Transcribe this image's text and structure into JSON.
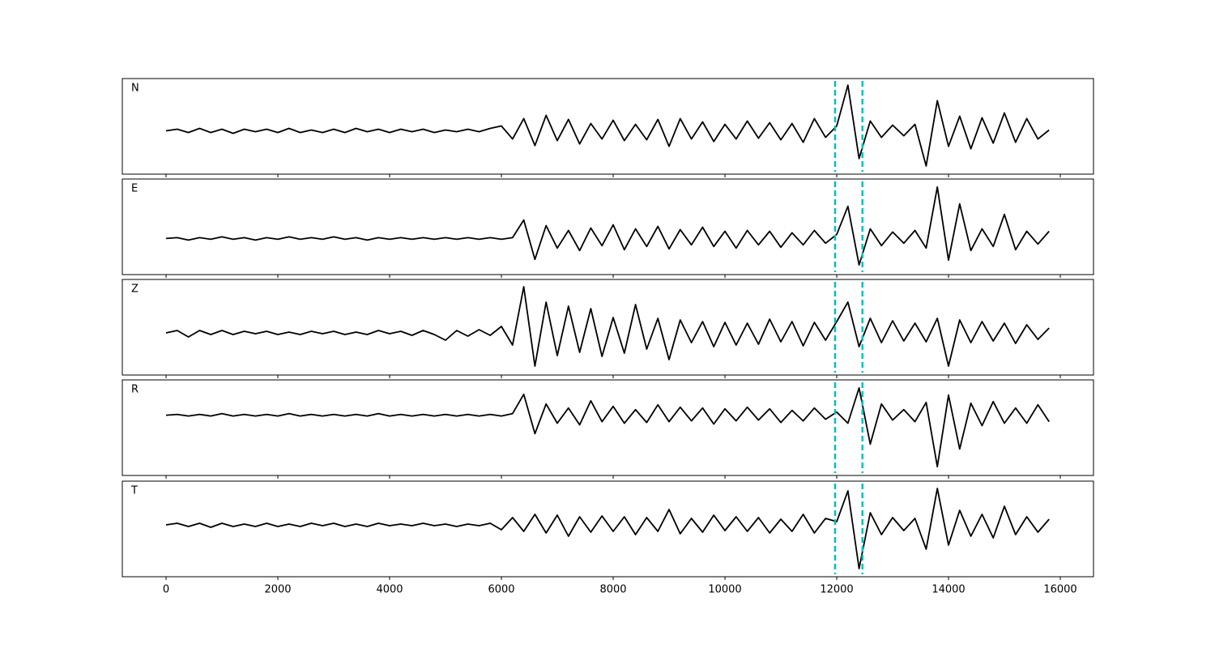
{
  "chart_data": {
    "type": "line",
    "x": [
      0,
      200,
      400,
      600,
      800,
      1000,
      1200,
      1400,
      1600,
      1800,
      2000,
      2200,
      2400,
      2600,
      2800,
      3000,
      3200,
      3400,
      3600,
      3800,
      4000,
      4200,
      4400,
      4600,
      4800,
      5000,
      5200,
      5400,
      5600,
      5800,
      6000,
      6200,
      6400,
      6600,
      6800,
      7000,
      7200,
      7400,
      7600,
      7800,
      8000,
      8200,
      8400,
      8600,
      8800,
      9000,
      9200,
      9400,
      9600,
      9800,
      10000,
      10200,
      10400,
      10600,
      10800,
      11000,
      11200,
      11400,
      11600,
      11800,
      12000,
      12200,
      12400,
      12600,
      12800,
      13000,
      13200,
      13400,
      13600,
      13800,
      14000,
      14200,
      14400,
      14600,
      14800,
      15000,
      15200,
      15400,
      15600,
      15800
    ],
    "xlim": [
      -783,
      16594
    ],
    "xticks": [
      0,
      2000,
      4000,
      6000,
      8000,
      10000,
      12000,
      14000,
      16000
    ],
    "series": [
      {
        "name": "N",
        "color": "#000000",
        "ylim": [
          -5.3,
          6.4
        ],
        "values": [
          0,
          0.2,
          -0.2,
          0.3,
          -0.2,
          0.2,
          -0.3,
          0.2,
          -0.1,
          0.2,
          -0.2,
          0.3,
          -0.2,
          0.1,
          -0.2,
          0.2,
          -0.2,
          0.3,
          -0.1,
          0.2,
          -0.2,
          0.2,
          -0.1,
          0.2,
          -0.2,
          0.1,
          -0.1,
          0.2,
          -0.1,
          0.3,
          0.6,
          -1.0,
          1.5,
          -1.8,
          1.9,
          -1.2,
          1.4,
          -1.6,
          0.9,
          -1.0,
          1.3,
          -1.2,
          0.8,
          -1.1,
          1.4,
          -1.9,
          1.5,
          -1.0,
          1.1,
          -1.3,
          0.8,
          -1.0,
          1.2,
          -0.9,
          1.0,
          -1.1,
          0.9,
          -1.4,
          1.5,
          -0.8,
          0.6,
          5.6,
          -3.4,
          1.2,
          -0.8,
          0.7,
          -0.6,
          0.8,
          -4.3,
          3.7,
          -1.9,
          1.8,
          -2.2,
          1.6,
          -1.5,
          2.2,
          -1.4,
          1.5,
          -1.0,
          0.1
        ]
      },
      {
        "name": "E",
        "color": "#000000",
        "ylim": [
          -4.5,
          7.4
        ],
        "values": [
          0,
          0.1,
          -0.2,
          0.1,
          -0.1,
          0.2,
          -0.1,
          0.1,
          -0.2,
          0.1,
          -0.1,
          0.2,
          -0.1,
          0.1,
          -0.1,
          0.2,
          -0.1,
          0.1,
          -0.2,
          0.1,
          -0.1,
          0.1,
          -0.1,
          0.1,
          -0.1,
          0.1,
          -0.1,
          0.1,
          -0.1,
          0.1,
          -0.1,
          0.1,
          2.3,
          -2.6,
          1.6,
          -1.2,
          1.0,
          -1.5,
          1.3,
          -0.9,
          1.7,
          -1.4,
          1.2,
          -1.0,
          1.5,
          -1.3,
          1.1,
          -0.8,
          1.4,
          -1.0,
          0.9,
          -1.2,
          1.0,
          -0.8,
          0.9,
          -1.1,
          0.7,
          -0.8,
          1.0,
          -0.6,
          0.5,
          4.0,
          -3.3,
          1.2,
          -0.9,
          0.8,
          -0.6,
          1.0,
          -1.2,
          6.4,
          -2.7,
          4.3,
          -1.5,
          1.2,
          -1.0,
          3.0,
          -1.4,
          0.9,
          -0.7,
          0.9
        ]
      },
      {
        "name": "Z",
        "color": "#000000",
        "ylim": [
          -5.2,
          6.6
        ],
        "values": [
          0,
          0.3,
          -0.5,
          0.3,
          -0.2,
          0.3,
          -0.2,
          0.2,
          -0.1,
          0.2,
          -0.2,
          0.1,
          -0.2,
          0.2,
          -0.1,
          0.2,
          -0.2,
          0.1,
          -0.2,
          0.3,
          -0.1,
          0.2,
          -0.3,
          0.3,
          -0.2,
          -0.9,
          0.3,
          -0.4,
          0.4,
          -0.3,
          0.8,
          -1.5,
          5.7,
          -4.1,
          3.8,
          -2.8,
          3.3,
          -2.4,
          3.0,
          -2.9,
          1.9,
          -2.5,
          3.5,
          -2.0,
          1.8,
          -3.3,
          1.6,
          -1.2,
          1.4,
          -1.7,
          1.3,
          -1.5,
          1.2,
          -1.4,
          1.7,
          -1.1,
          1.4,
          -1.6,
          1.3,
          -0.9,
          1.4,
          3.8,
          -1.7,
          1.8,
          -1.2,
          1.5,
          -1.0,
          1.2,
          -1.1,
          1.8,
          -4.1,
          1.6,
          -1.2,
          1.4,
          -1.0,
          1.2,
          -1.3,
          1.0,
          -0.8,
          0.6
        ]
      },
      {
        "name": "R",
        "color": "#000000",
        "ylim": [
          -7.5,
          4.4
        ],
        "values": [
          0,
          0.1,
          -0.1,
          0.1,
          -0.1,
          0.2,
          -0.1,
          0.1,
          -0.1,
          0.1,
          -0.1,
          0.2,
          -0.1,
          0.1,
          -0.1,
          0.1,
          -0.1,
          0.1,
          -0.1,
          0.2,
          -0.1,
          0.1,
          -0.1,
          0.1,
          -0.1,
          0.1,
          -0.1,
          0.1,
          -0.1,
          0.1,
          -0.1,
          0.2,
          2.6,
          -2.3,
          1.4,
          -1.0,
          0.9,
          -1.2,
          1.8,
          -0.8,
          1.1,
          -1.0,
          0.7,
          -0.9,
          1.3,
          -0.8,
          1.0,
          -0.7,
          0.9,
          -1.1,
          0.8,
          -0.7,
          1.0,
          -0.6,
          0.8,
          -0.9,
          0.6,
          -0.7,
          0.9,
          -0.5,
          0.4,
          -1.0,
          3.4,
          -3.6,
          1.4,
          -0.6,
          0.7,
          -0.8,
          1.6,
          -6.4,
          2.5,
          -4.2,
          1.5,
          -1.3,
          1.7,
          -1.0,
          0.9,
          -1.0,
          1.3,
          -0.8
        ]
      },
      {
        "name": "T",
        "color": "#000000",
        "ylim": [
          -6.4,
          5.4
        ],
        "values": [
          0,
          0.2,
          -0.2,
          0.2,
          -0.3,
          0.2,
          -0.2,
          0.1,
          -0.2,
          0.2,
          -0.2,
          0.1,
          -0.2,
          0.2,
          -0.1,
          0.2,
          -0.2,
          0.1,
          -0.2,
          0.2,
          -0.1,
          0.1,
          -0.1,
          0.2,
          -0.1,
          0.1,
          -0.2,
          0.1,
          -0.1,
          0.2,
          -0.6,
          0.9,
          -0.8,
          1.3,
          -1.0,
          1.2,
          -1.4,
          1.0,
          -0.9,
          1.1,
          -0.8,
          1.0,
          -1.2,
          0.9,
          -0.8,
          1.9,
          -1.1,
          0.8,
          -0.9,
          1.2,
          -0.7,
          1.0,
          -0.8,
          0.9,
          -1.0,
          0.7,
          -0.8,
          1.3,
          -1.0,
          0.8,
          0.4,
          4.2,
          -5.4,
          1.5,
          -1.2,
          0.9,
          -0.7,
          0.8,
          -3.0,
          4.5,
          -2.5,
          1.8,
          -1.4,
          1.3,
          -1.6,
          2.3,
          -1.2,
          1.0,
          -0.9,
          0.7
        ]
      }
    ],
    "vlines": [
      11970,
      12460
    ],
    "vline_color": "#00bfbf"
  }
}
